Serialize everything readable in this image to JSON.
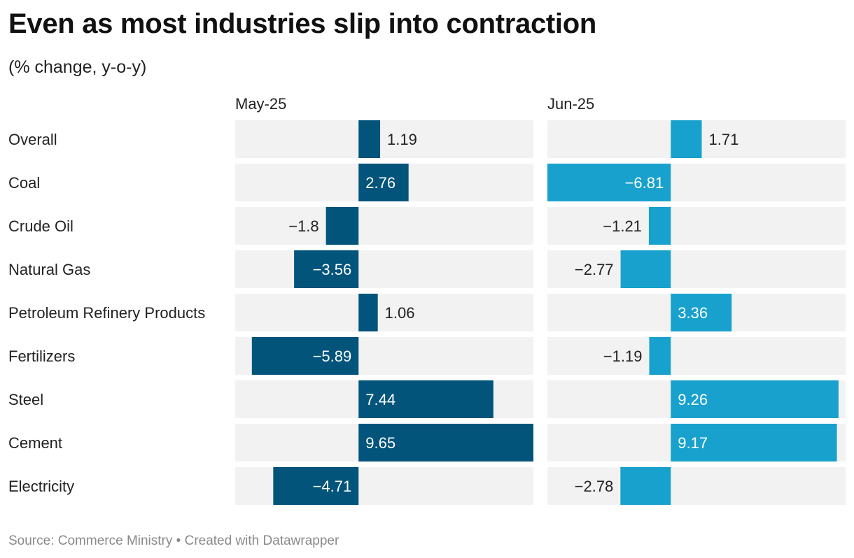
{
  "title": "Even as most industries slip into contraction",
  "subtitle": "(% change, y-o-y)",
  "footer": {
    "source": "Source: Commerce Ministry",
    "separator": "•",
    "credit": "Created with Datawrapper"
  },
  "footer_text": "Source: Commerce Ministry • Created with Datawrapper",
  "colors": {
    "may": "#02547b",
    "jun": "#19a1cd",
    "background_bar": "#f2f2f2"
  },
  "chart_data": {
    "type": "bar",
    "orientation": "horizontal",
    "layout": "split-bars",
    "xlim": [
      -6.81,
      9.65
    ],
    "grid": false,
    "categories": [
      "Overall",
      "Coal",
      "Crude Oil",
      "Natural Gas",
      "Petroleum Refinery Products",
      "Fertilizers",
      "Steel",
      "Cement",
      "Electricity"
    ],
    "series": [
      {
        "name": "May-25",
        "color": "#02547b",
        "values": [
          1.19,
          2.76,
          -1.8,
          -3.56,
          1.06,
          -5.89,
          7.44,
          9.65,
          -4.71
        ]
      },
      {
        "name": "Jun-25",
        "color": "#19a1cd",
        "values": [
          1.71,
          -6.81,
          -1.21,
          -2.77,
          3.36,
          -1.19,
          9.26,
          9.17,
          -2.78
        ]
      }
    ]
  }
}
